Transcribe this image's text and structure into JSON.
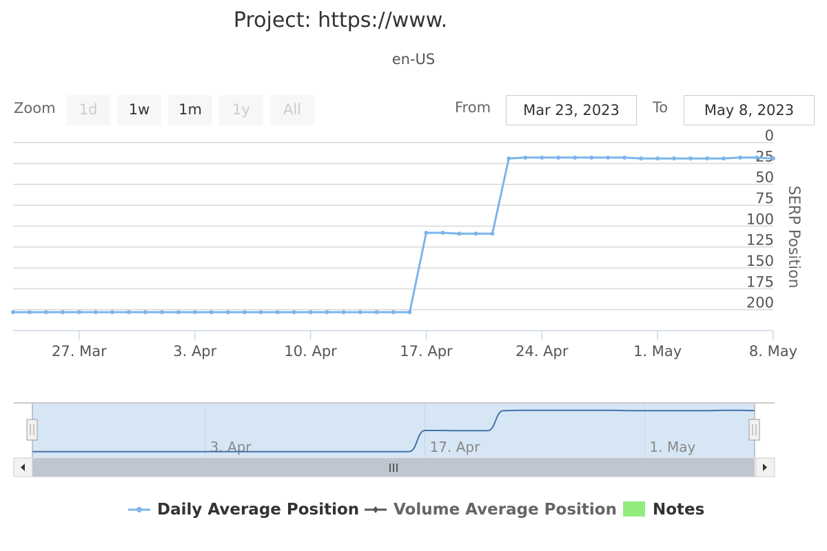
{
  "chart_data": {
    "type": "line",
    "title": "Project: https://www.",
    "subtitle": "en-US",
    "ylabel": "SERP Position",
    "ylim": [
      0,
      225
    ],
    "y_reversed": true,
    "y_ticks": [
      0,
      25,
      50,
      75,
      100,
      125,
      150,
      175,
      200
    ],
    "x_range": [
      "2023-03-23",
      "2023-05-08"
    ],
    "x_ticks": [
      {
        "date": "2023-03-27",
        "label": "27. Mar"
      },
      {
        "date": "2023-04-03",
        "label": "3. Apr"
      },
      {
        "date": "2023-04-10",
        "label": "10. Apr"
      },
      {
        "date": "2023-04-17",
        "label": "17. Apr"
      },
      {
        "date": "2023-04-24",
        "label": "24. Apr"
      },
      {
        "date": "2023-05-01",
        "label": "1. May"
      },
      {
        "date": "2023-05-08",
        "label": "8. May"
      }
    ],
    "grid": true,
    "legend": "bottom",
    "series": [
      {
        "name": "Daily Average Position",
        "color": "#7cb5ec",
        "x": [
          "2023-03-23",
          "2023-03-24",
          "2023-03-25",
          "2023-03-26",
          "2023-03-27",
          "2023-03-28",
          "2023-03-29",
          "2023-03-30",
          "2023-03-31",
          "2023-04-01",
          "2023-04-02",
          "2023-04-03",
          "2023-04-04",
          "2023-04-05",
          "2023-04-06",
          "2023-04-07",
          "2023-04-08",
          "2023-04-09",
          "2023-04-10",
          "2023-04-11",
          "2023-04-12",
          "2023-04-13",
          "2023-04-14",
          "2023-04-15",
          "2023-04-16",
          "2023-04-17",
          "2023-04-18",
          "2023-04-19",
          "2023-04-20",
          "2023-04-21",
          "2023-04-22",
          "2023-04-23",
          "2023-04-24",
          "2023-04-25",
          "2023-04-26",
          "2023-04-27",
          "2023-04-28",
          "2023-04-29",
          "2023-04-30",
          "2023-05-01",
          "2023-05-02",
          "2023-05-03",
          "2023-05-04",
          "2023-05-05",
          "2023-05-06",
          "2023-05-07",
          "2023-05-08"
        ],
        "values": [
          203,
          203,
          203,
          203,
          203,
          203,
          203,
          203,
          203,
          203,
          203,
          203,
          203,
          203,
          203,
          203,
          203,
          203,
          203,
          203,
          203,
          203,
          203,
          203,
          203,
          108,
          108,
          109,
          109,
          109,
          19,
          18,
          18,
          18,
          18,
          18,
          18,
          18,
          19,
          19,
          19,
          19,
          19,
          19,
          18,
          18,
          19
        ]
      },
      {
        "name": "Volume Average Position",
        "color": "#434348",
        "x": [],
        "values": []
      },
      {
        "name": "Notes",
        "color": "#90ed7d",
        "x": [],
        "values": []
      }
    ]
  },
  "rangeSelector": {
    "zoom_label": "Zoom",
    "buttons": [
      {
        "label": "1d",
        "enabled": false
      },
      {
        "label": "1w",
        "enabled": true
      },
      {
        "label": "1m",
        "enabled": true
      },
      {
        "label": "1y",
        "enabled": false
      },
      {
        "label": "All",
        "enabled": false
      }
    ],
    "from_label": "From",
    "from_value": "Mar 23, 2023",
    "to_label": "To",
    "to_value": "May 8, 2023"
  },
  "navigator": {
    "ticks": [
      {
        "date": "2023-04-03",
        "label": "3. Apr"
      },
      {
        "date": "2023-04-17",
        "label": "17. Apr"
      },
      {
        "date": "2023-05-01",
        "label": "1. May"
      }
    ],
    "mask_color": "#d6e6f5",
    "line_color": "#4572a7"
  }
}
